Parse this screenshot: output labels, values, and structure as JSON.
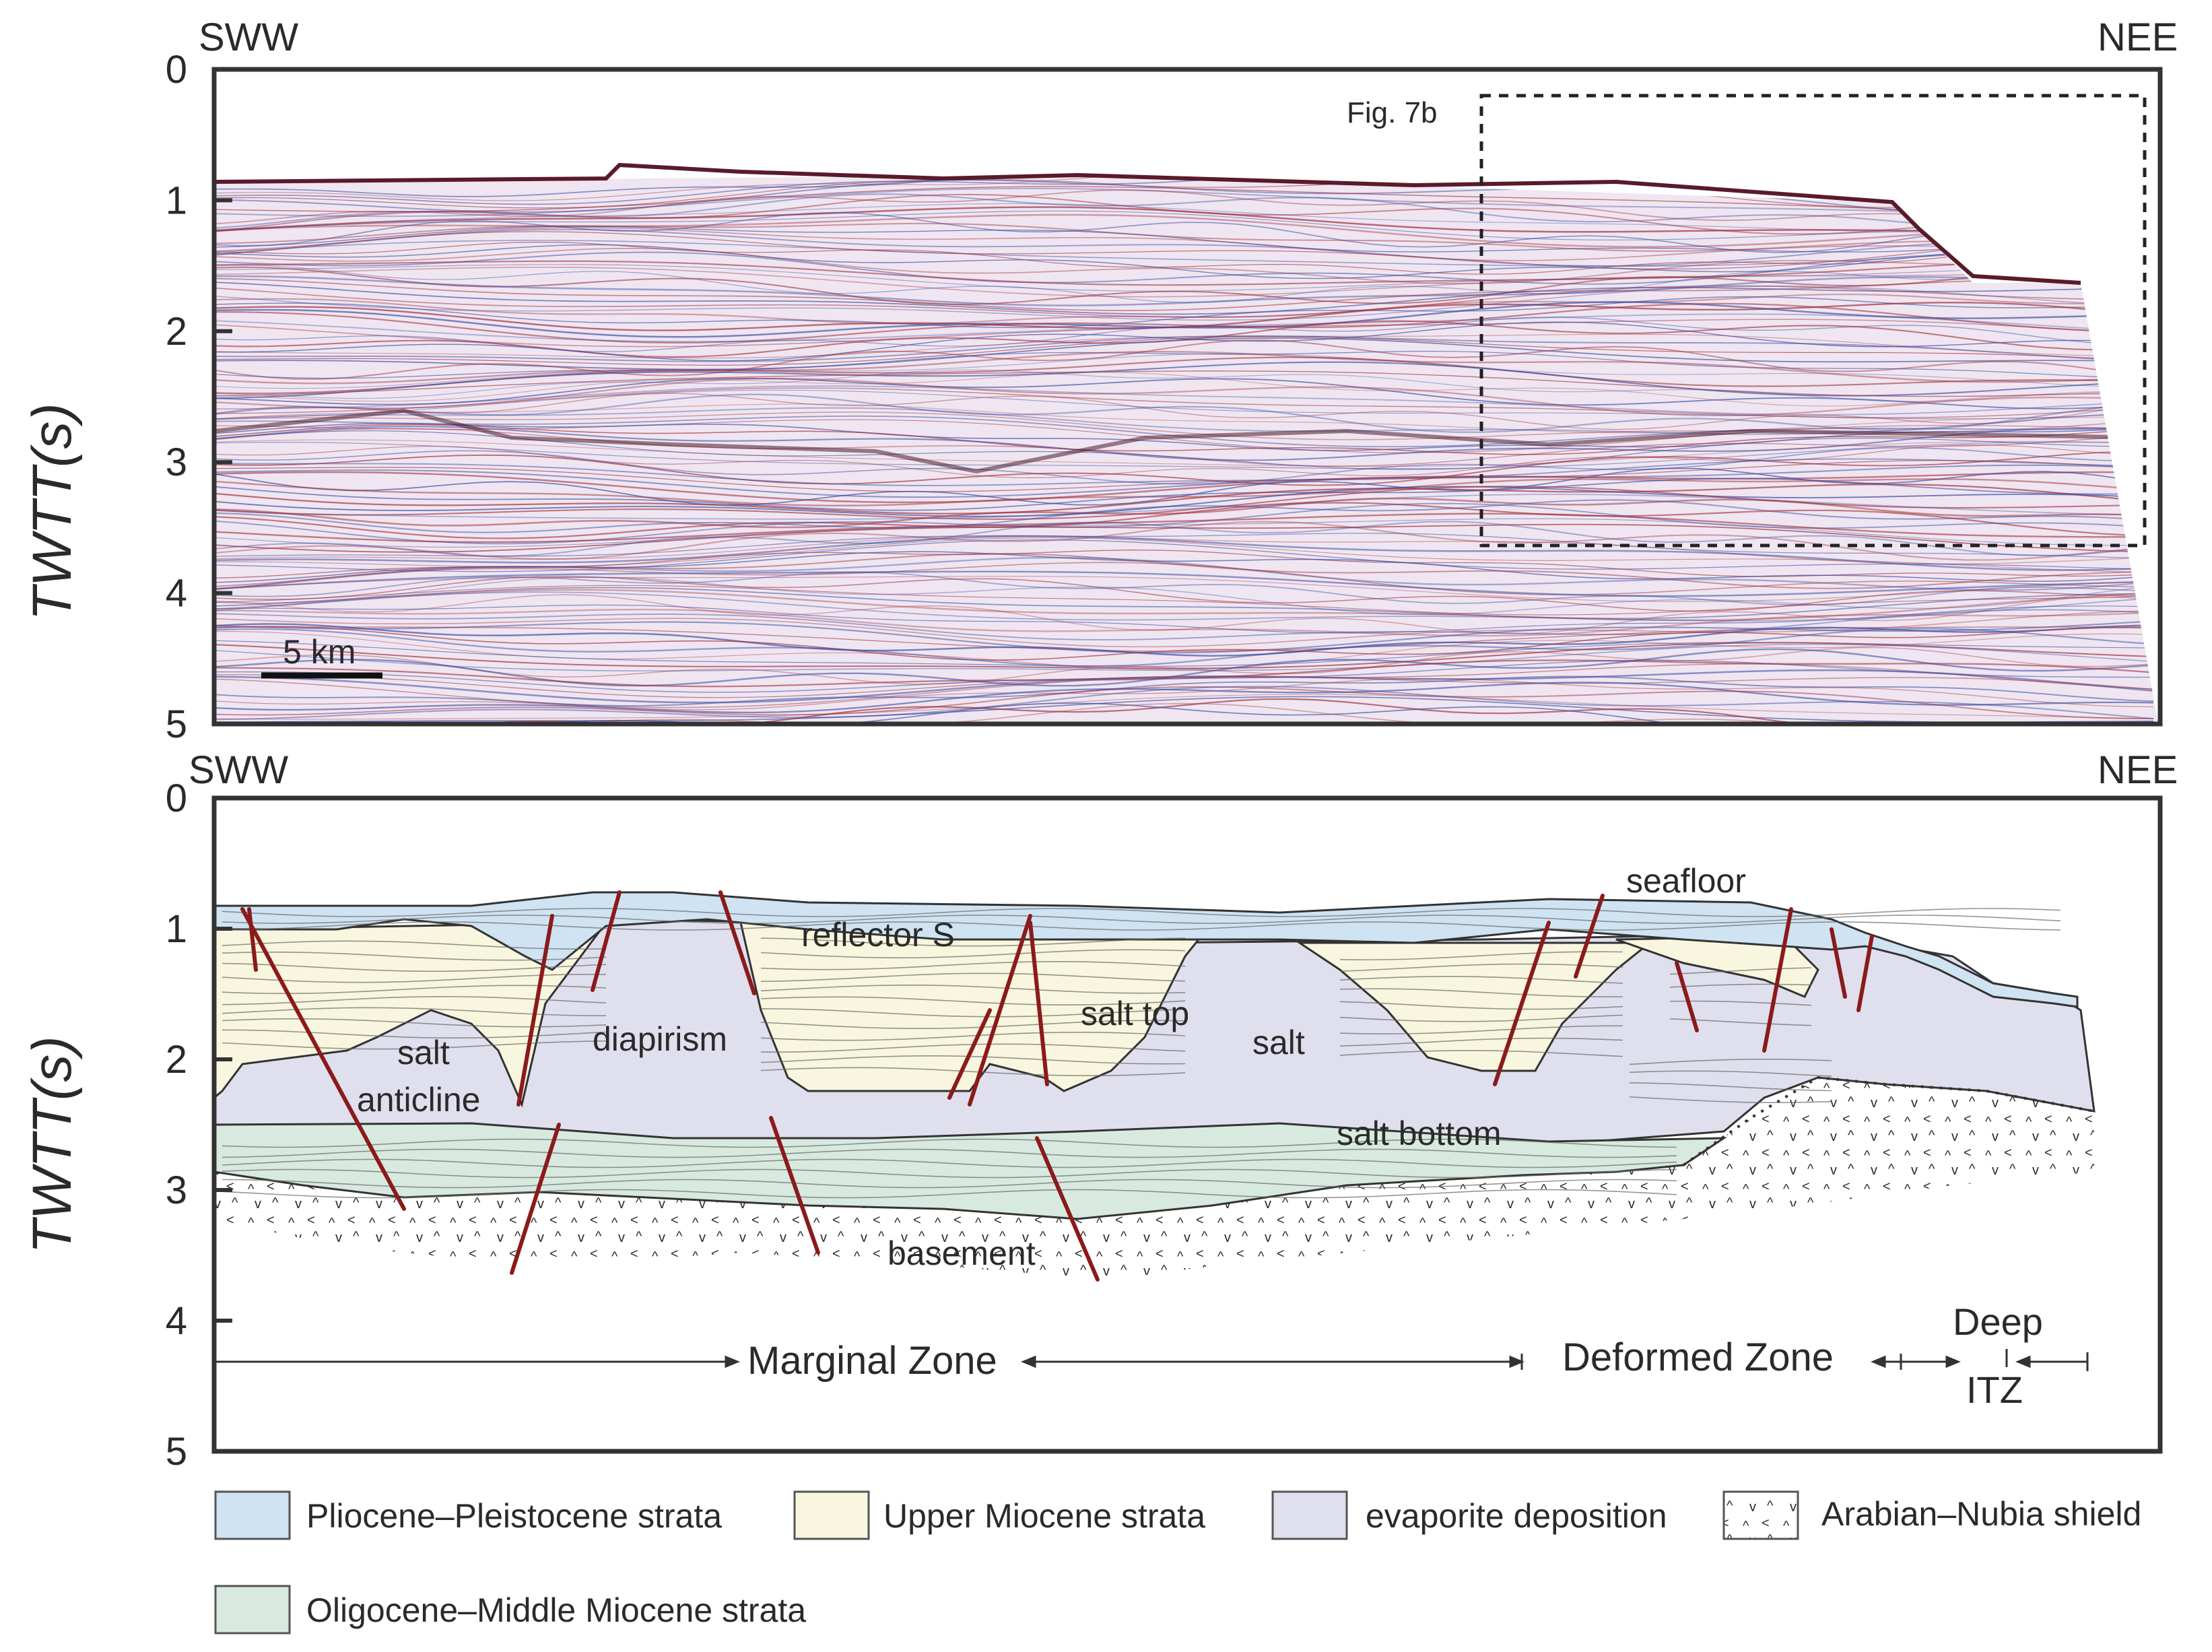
{
  "top_panel": {
    "left_label": "SWW",
    "right_label": "NEE",
    "y_axis_label": "TWTT(s)",
    "y_ticks": [
      "0",
      "1",
      "2",
      "3",
      "4",
      "5"
    ],
    "scale_bar_label": "5 km",
    "inset_label": "Fig. 7b"
  },
  "bottom_panel": {
    "left_label": "SWW",
    "right_label": "NEE",
    "y_axis_label": "TWTT(s)",
    "y_ticks": [
      "0",
      "1",
      "2",
      "3",
      "4",
      "5"
    ],
    "annotations": {
      "seafloor": "seafloor",
      "reflector_s": "reflector S",
      "salt_top": "salt top",
      "salt": "salt",
      "diapirism": "diapirism",
      "salt_anticline_1": "salt",
      "salt_anticline_2": "anticline",
      "salt_bottom": "salt bottom",
      "basement": "basement"
    },
    "zones": {
      "marginal": "Marginal Zone",
      "deformed": "Deformed Zone",
      "deep": "Deep",
      "itz": "ITZ"
    }
  },
  "legend": [
    {
      "label": "Pliocene–Pleistocene strata",
      "color": "#cfe3f2"
    },
    {
      "label": "Upper Miocene strata",
      "color": "#f8f6de"
    },
    {
      "label": "evaporite deposition",
      "color": "#dfdfee"
    },
    {
      "label": "Arabian–Nubia shield",
      "color": "#ffffff"
    },
    {
      "label": "Oligocene–Middle Miocene strata",
      "color": "#d8e9df"
    }
  ],
  "colors": {
    "fault": "#8b1a1a",
    "seismic_red": "#a0303c",
    "seismic_blue": "#3a4aa0"
  }
}
